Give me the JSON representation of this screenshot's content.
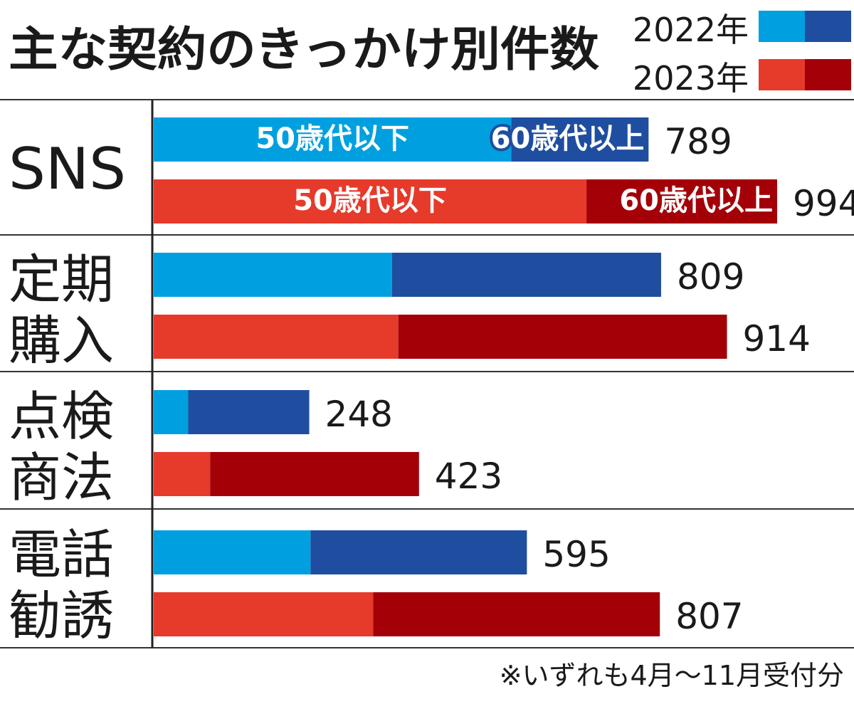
{
  "chart_data": {
    "type": "bar",
    "orientation": "horizontal",
    "stacked": true,
    "title": "主な契約のきっかけ別件数",
    "categories": [
      {
        "lines": [
          "SNS"
        ]
      },
      {
        "lines": [
          "定期",
          "購入"
        ]
      },
      {
        "lines": [
          "点検",
          "商法"
        ]
      },
      {
        "lines": [
          "電話",
          "勧誘"
        ]
      }
    ],
    "segment_labels": [
      "50歳代以下",
      "60歳代以上"
    ],
    "series": [
      {
        "name": "2022年",
        "colors": [
          "#00a0e0",
          "#1f4ea0"
        ],
        "total": [
          789,
          809,
          248,
          595
        ],
        "under_50s": [
          570,
          380,
          55,
          250
        ],
        "over_60s": [
          219,
          429,
          193,
          345
        ]
      },
      {
        "name": "2023年",
        "colors": [
          "#e63a2b",
          "#a30008"
        ],
        "total": [
          994,
          914,
          423,
          807
        ],
        "under_50s": [
          690,
          390,
          90,
          350
        ],
        "over_60s": [
          304,
          524,
          333,
          457
        ]
      }
    ],
    "xlim": [
      0,
      1000
    ],
    "grid": false,
    "legend": "top-right",
    "note": "※いずれも4月〜11月受付分"
  }
}
